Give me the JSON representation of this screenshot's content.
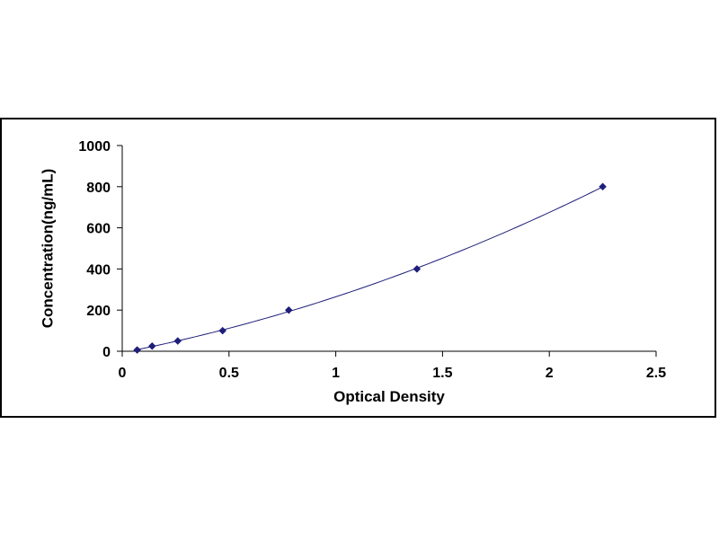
{
  "chart_data": {
    "type": "scatter",
    "title": "",
    "xlabel": "Optical Density",
    "ylabel": "Concentration(ng/mL)",
    "xlim": [
      0,
      2.5
    ],
    "ylim": [
      0,
      1000
    ],
    "x_ticks": [
      "0",
      "0.5",
      "1",
      "1.5",
      "2",
      "2.5"
    ],
    "y_ticks": [
      "0",
      "200",
      "400",
      "600",
      "800",
      "1000"
    ],
    "grid": false,
    "legend": "none",
    "marker": "diamond",
    "trendline": "smooth polynomial fit",
    "series": [
      {
        "x": [
          0.07,
          0.14,
          0.26,
          0.47,
          0.78,
          1.38,
          2.25
        ],
        "y": [
          6.25,
          25,
          50,
          100,
          200,
          400,
          800
        ]
      }
    ],
    "colors": {
      "marker": "#1f1f7a",
      "line": "#1f1f7a",
      "axis": "#000000"
    }
  }
}
